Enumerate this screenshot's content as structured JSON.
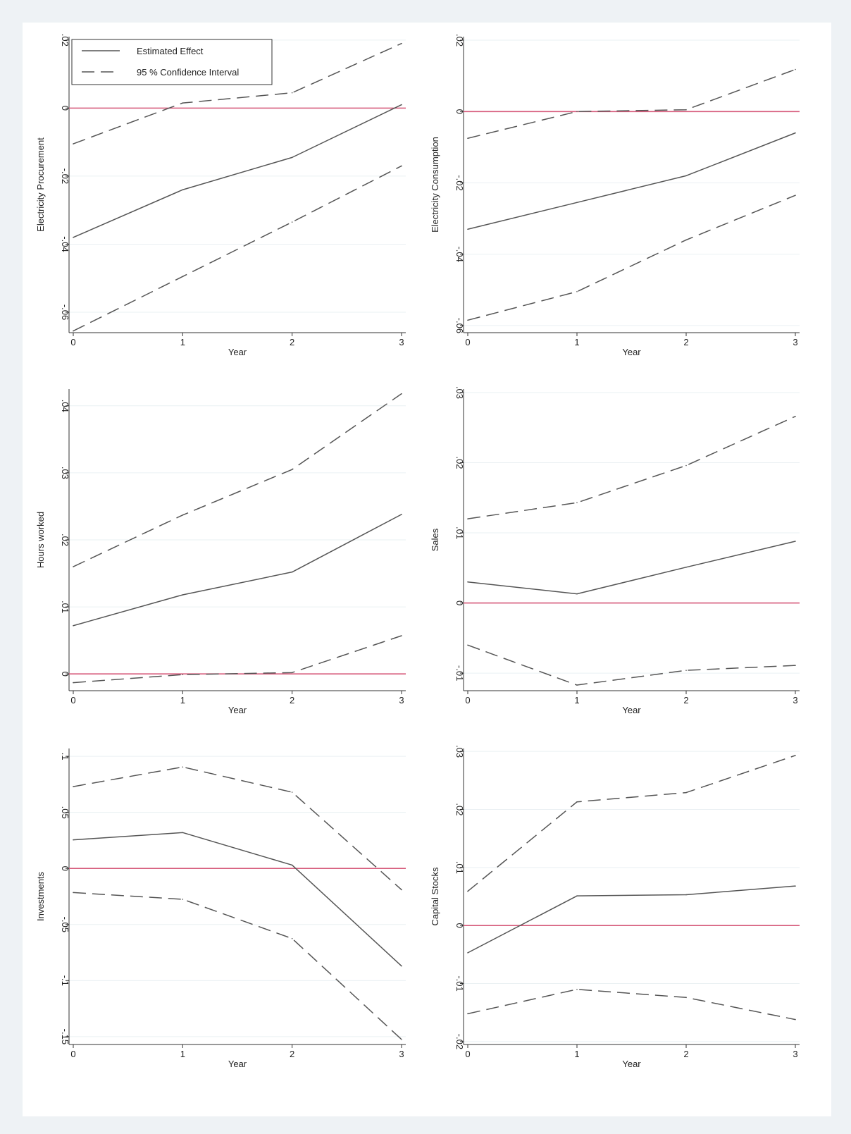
{
  "colors": {
    "background": "#eef2f5",
    "plot_bg": "#ffffff",
    "grid": "#eaf0f3",
    "axis": "#333333",
    "series_line": "#555555",
    "zero_line": "#d65a7a"
  },
  "legend": {
    "estimated_label": "Estimated Effect",
    "ci_label": "95 % Confidence Interval",
    "placement": "top-left of first panel"
  },
  "chart_data": [
    {
      "type": "line",
      "ylabel": "Electricity Procurement",
      "xlabel": "Year",
      "x": [
        0,
        1,
        2,
        3
      ],
      "xticks": [
        "0",
        "1",
        "2",
        "3"
      ],
      "ylim": [
        -0.066,
        0.021
      ],
      "yticks": [
        -0.06,
        -0.04,
        -0.02,
        0,
        0.02
      ],
      "ytick_labels": [
        "-.06",
        "-.04",
        "-.02",
        "0",
        ".02"
      ],
      "zero_line": true,
      "series": [
        {
          "name": "Estimated Effect",
          "style": "solid",
          "values": [
            -0.038,
            -0.024,
            -0.0145,
            0.001
          ]
        },
        {
          "name": "95 % Confidence Interval",
          "style": "dashed",
          "values": [
            -0.0105,
            0.0015,
            0.0045,
            0.019
          ]
        },
        {
          "style": "dashed",
          "values": [
            -0.0655,
            -0.0495,
            -0.0335,
            -0.017
          ]
        }
      ]
    },
    {
      "type": "line",
      "ylabel": "Electricity Consumption",
      "xlabel": "Year",
      "x": [
        0,
        1,
        2,
        3
      ],
      "xticks": [
        "0",
        "1",
        "2",
        "3"
      ],
      "ylim": [
        -0.062,
        0.021
      ],
      "yticks": [
        -0.06,
        -0.04,
        -0.02,
        0,
        0.02
      ],
      "ytick_labels": [
        "-.06",
        "-.04",
        "-.02",
        "0",
        ".02"
      ],
      "zero_line": true,
      "series": [
        {
          "style": "solid",
          "values": [
            -0.033,
            -0.0255,
            -0.018,
            -0.006
          ]
        },
        {
          "style": "dashed",
          "values": [
            -0.0075,
            0.0,
            0.0005,
            0.0118
          ]
        },
        {
          "style": "dashed",
          "values": [
            -0.0585,
            -0.0505,
            -0.036,
            -0.0235
          ]
        }
      ]
    },
    {
      "type": "line",
      "ylabel": "Hours worked",
      "xlabel": "Year",
      "x": [
        0,
        1,
        2,
        3
      ],
      "xticks": [
        "0",
        "1",
        "2",
        "3"
      ],
      "ylim": [
        -0.0025,
        0.0425
      ],
      "yticks": [
        0,
        0.01,
        0.02,
        0.03,
        0.04
      ],
      "ytick_labels": [
        "0",
        ".01",
        ".02",
        ".03",
        ".04"
      ],
      "zero_line": true,
      "series": [
        {
          "style": "solid",
          "values": [
            0.0072,
            0.0118,
            0.0152,
            0.0238
          ]
        },
        {
          "style": "dashed",
          "values": [
            0.016,
            0.0237,
            0.0305,
            0.0418
          ]
        },
        {
          "style": "dashed",
          "values": [
            -0.0013,
            -0.0001,
            0.0002,
            0.0057
          ]
        }
      ]
    },
    {
      "type": "line",
      "ylabel": "Sales",
      "xlabel": "Year",
      "x": [
        0,
        1,
        2,
        3
      ],
      "xticks": [
        "0",
        "1",
        "2",
        "3"
      ],
      "ylim": [
        -0.0125,
        0.0305
      ],
      "yticks": [
        -0.01,
        0,
        0.01,
        0.02,
        0.03
      ],
      "ytick_labels": [
        "-.01",
        "0",
        ".01",
        ".02",
        ".03"
      ],
      "zero_line": true,
      "series": [
        {
          "style": "solid",
          "values": [
            0.003,
            0.0013,
            0.0051,
            0.0088
          ]
        },
        {
          "style": "dashed",
          "values": [
            0.012,
            0.0143,
            0.0196,
            0.0266
          ]
        },
        {
          "style": "dashed",
          "values": [
            -0.006,
            -0.0117,
            -0.0096,
            -0.0089
          ]
        }
      ]
    },
    {
      "type": "line",
      "ylabel": "Investments",
      "xlabel": "Year",
      "x": [
        0,
        1,
        2,
        3
      ],
      "xticks": [
        "0",
        "1",
        "2",
        "3"
      ],
      "ylim": [
        -0.157,
        0.107
      ],
      "yticks": [
        -0.15,
        -0.1,
        -0.05,
        0,
        0.05,
        0.1
      ],
      "ytick_labels": [
        "-.15",
        "-.1",
        "-.05",
        "0",
        ".05",
        ".1"
      ],
      "zero_line": true,
      "series": [
        {
          "style": "solid",
          "values": [
            0.0255,
            0.032,
            0.003,
            -0.087
          ]
        },
        {
          "style": "dashed",
          "values": [
            0.073,
            0.0905,
            0.068,
            -0.019
          ]
        },
        {
          "style": "dashed",
          "values": [
            -0.0215,
            -0.0275,
            -0.0625,
            -0.1525
          ]
        }
      ]
    },
    {
      "type": "line",
      "ylabel": "Capital Stocks",
      "xlabel": "Year",
      "x": [
        0,
        1,
        2,
        3
      ],
      "xticks": [
        "0",
        "1",
        "2",
        "3"
      ],
      "ylim": [
        -0.0205,
        0.0305
      ],
      "yticks": [
        -0.02,
        -0.01,
        0,
        0.01,
        0.02,
        0.03
      ],
      "ytick_labels": [
        "-.02",
        "-.01",
        "0",
        ".01",
        ".02",
        ".03"
      ],
      "zero_line": true,
      "series": [
        {
          "style": "solid",
          "values": [
            -0.0047,
            0.0051,
            0.0053,
            0.0068
          ]
        },
        {
          "style": "dashed",
          "values": [
            0.0059,
            0.0213,
            0.0229,
            0.0293
          ]
        },
        {
          "style": "dashed",
          "values": [
            -0.0152,
            -0.011,
            -0.0124,
            -0.0162
          ]
        }
      ]
    }
  ]
}
